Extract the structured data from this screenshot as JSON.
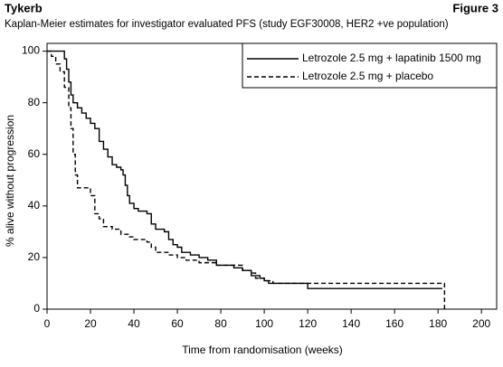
{
  "header": {
    "title": "Tykerb",
    "figure": "Figure 3"
  },
  "chart_data": {
    "type": "line",
    "step": true,
    "title": "Kaplan-Meier estimates for investigator evaluated PFS (study EGF30008, HER2 +ve population)",
    "x_label": "Time from randomisation (weeks)",
    "y_label": "% alive without progression",
    "xlim": [
      0,
      207
    ],
    "ylim": [
      0,
      103
    ],
    "xticks": [
      0,
      20,
      40,
      60,
      80,
      100,
      120,
      140,
      160,
      180,
      200
    ],
    "yticks": [
      0,
      20,
      40,
      60,
      80,
      100
    ],
    "series": [
      {
        "name": "Letrozole 2.5 mg + lapatinib 1500 mg",
        "color": "#000000",
        "dash": "none",
        "x": [
          0,
          7,
          8,
          9,
          10,
          11,
          12,
          14,
          16,
          18,
          20,
          22,
          24,
          26,
          28,
          30,
          32,
          34,
          35,
          36,
          37,
          38,
          40,
          42,
          46,
          48,
          50,
          54,
          56,
          58,
          60,
          62,
          66,
          70,
          74,
          78,
          86,
          90,
          94,
          98,
          100,
          102,
          120,
          182
        ],
        "values": [
          100,
          100,
          97,
          93,
          88,
          83,
          80,
          78,
          76,
          74,
          72,
          70,
          65,
          62,
          59,
          56,
          55,
          54,
          52,
          48,
          44,
          41,
          39,
          38,
          37,
          33,
          31,
          30,
          27,
          25,
          24,
          22,
          21,
          20,
          19,
          17,
          16,
          15,
          13,
          12,
          11,
          10,
          8,
          8
        ]
      },
      {
        "name": "Letrozole 2.5 mg + placebo",
        "color": "#000000",
        "dash": "5,3",
        "x": [
          0,
          2,
          4,
          6,
          8,
          10,
          11,
          12,
          13,
          14,
          18,
          20,
          22,
          24,
          26,
          30,
          34,
          38,
          40,
          46,
          48,
          50,
          56,
          60,
          64,
          70,
          78,
          90,
          94,
          96,
          100,
          104,
          182,
          183
        ],
        "values": [
          100,
          98,
          95,
          92,
          86,
          78,
          70,
          60,
          52,
          47,
          47,
          44,
          37,
          35,
          32,
          31,
          29,
          28,
          27,
          26,
          24,
          22,
          21,
          20,
          19,
          18,
          17,
          15,
          14,
          12,
          11,
          10,
          10,
          0
        ]
      }
    ]
  }
}
